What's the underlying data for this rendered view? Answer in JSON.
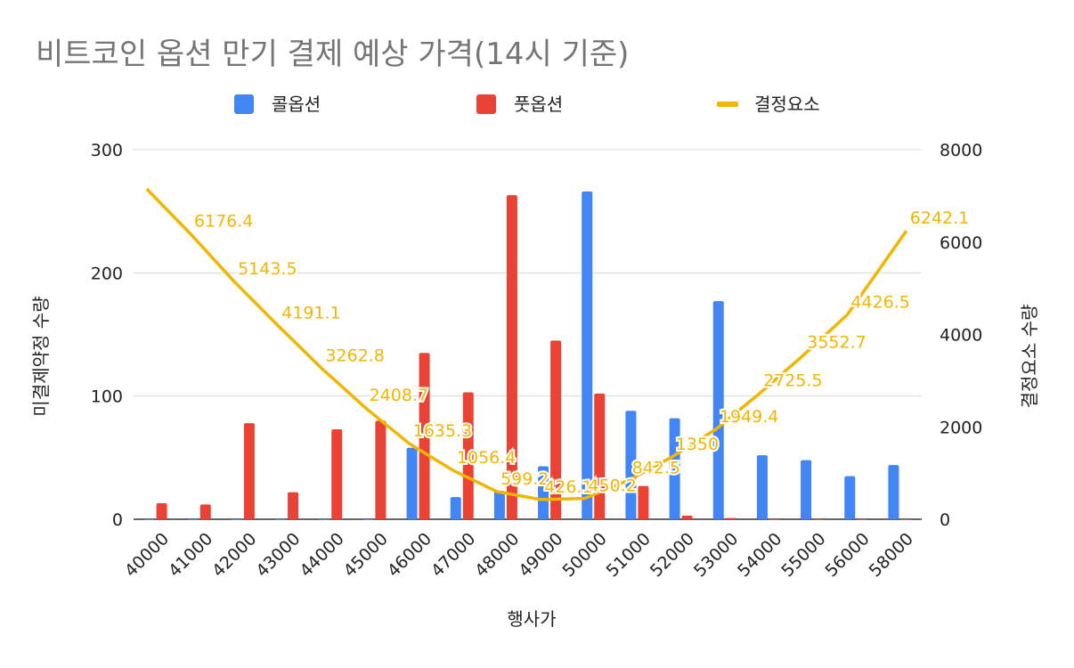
{
  "chart_data": {
    "type": "bar",
    "title": "비트코인 옵션 만기 결제 예상 가격(14시 기준)",
    "xlabel": "행사가",
    "ylabel": "미결제약정 수량",
    "y2label": "결정요소 수량",
    "categories": [
      "40000",
      "41000",
      "42000",
      "43000",
      "44000",
      "45000",
      "46000",
      "47000",
      "48000",
      "49000",
      "50000",
      "51000",
      "52000",
      "53000",
      "54000",
      "55000",
      "56000",
      "58000"
    ],
    "ylim": [
      0,
      300
    ],
    "y_ticks": [
      "0",
      "100",
      "200",
      "300"
    ],
    "y2lim": [
      0,
      8000
    ],
    "y2_ticks": [
      "0",
      "2000",
      "4000",
      "6000",
      "8000"
    ],
    "grid": true,
    "legend_position": "top",
    "series": [
      {
        "name": "콜옵션",
        "type": "bar",
        "axis": "left",
        "color": "#4285f4",
        "values": [
          0,
          0,
          0,
          0,
          0,
          0,
          58,
          18,
          23,
          43,
          266,
          88,
          82,
          177,
          52,
          48,
          35,
          44
        ]
      },
      {
        "name": "풋옵션",
        "type": "bar",
        "axis": "left",
        "color": "#ea4335",
        "values": [
          13,
          12,
          78,
          22,
          73,
          80,
          135,
          103,
          263,
          145,
          102,
          27,
          3,
          1,
          0,
          0,
          0,
          0
        ]
      },
      {
        "name": "결정요소",
        "type": "line",
        "axis": "right",
        "color": "#f2b600",
        "values": [
          7150,
          6176.4,
          5143.5,
          4191.1,
          3262.8,
          2408.7,
          1635.3,
          1056.4,
          599.2,
          426.1,
          450.2,
          842.5,
          1350,
          1949.4,
          2725.5,
          3552.7,
          4426.5,
          6242.1
        ],
        "data_labels": [
          "",
          "6176.4",
          "5143.5",
          "4191.1",
          "3262.8",
          "2408.7",
          "1635.3",
          "1056.4",
          "599.2",
          "426.1",
          "450.2",
          "842.5",
          "1350",
          "1949.4",
          "2725.5",
          "3552.7",
          "4426.5",
          "6242.1"
        ]
      }
    ]
  }
}
